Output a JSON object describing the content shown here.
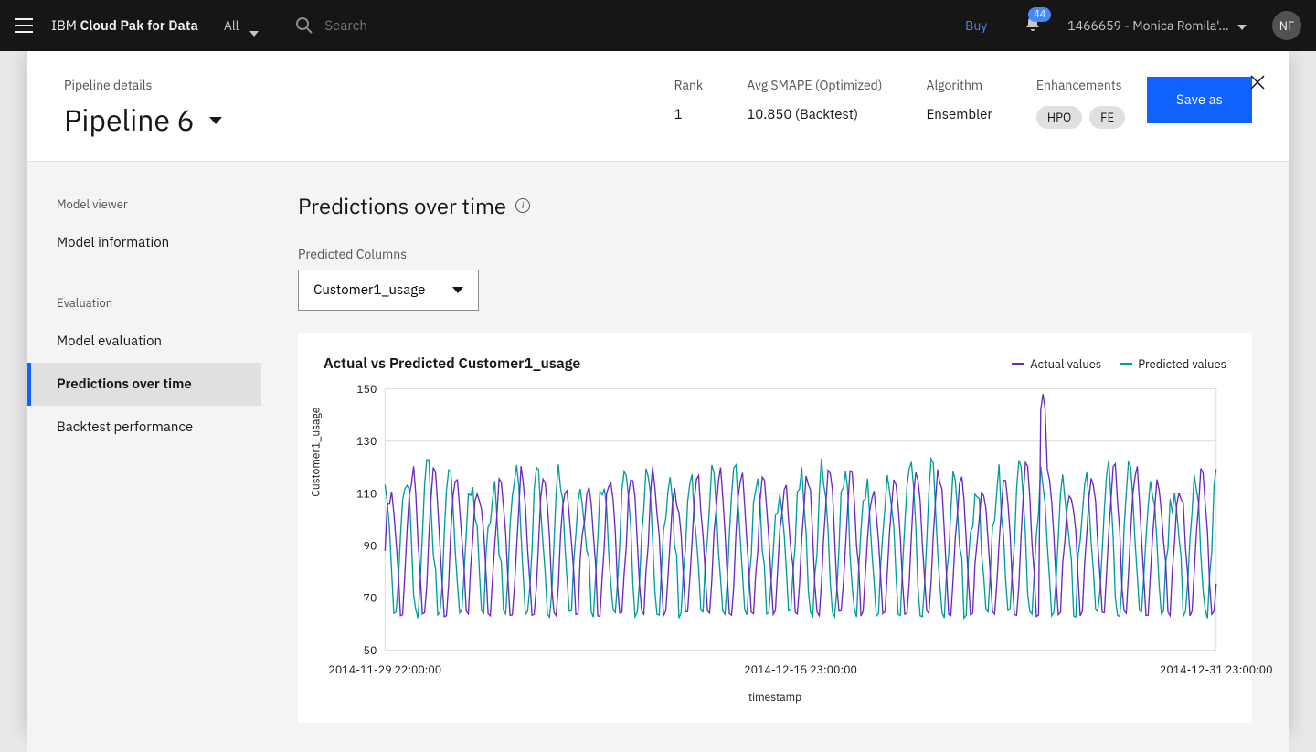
{
  "header": {
    "brand_prefix": "IBM ",
    "brand_bold": "Cloud Pak for Data",
    "filter_label": "All",
    "search_placeholder": "Search",
    "buy_label": "Buy",
    "notification_count": "44",
    "account_label": "1466659 - Monica Romila'...",
    "avatar_initials": "NF"
  },
  "panel": {
    "subtitle": "Pipeline details",
    "title": "Pipeline 6",
    "stats": {
      "rank_label": "Rank",
      "rank_value": "1",
      "metric_label": "Avg SMAPE  (Optimized)",
      "metric_value": "10.850 (Backtest)",
      "algorithm_label": "Algorithm",
      "algorithm_value": "Ensembler",
      "enhancements_label": "Enhancements",
      "tag1": "HPO",
      "tag2": "FE"
    },
    "save_label": "Save as"
  },
  "sidebar": {
    "section1": "Model viewer",
    "item1": "Model information",
    "section2": "Evaluation",
    "item2": "Model evaluation",
    "item3": "Predictions over time",
    "item4": "Backtest performance"
  },
  "content": {
    "title": "Predictions over time",
    "predicted_columns_label": "Predicted Columns",
    "selected_column": "Customer1_usage"
  },
  "chart": {
    "title": "Actual vs Predicted Customer1_usage",
    "legend_actual": "Actual values",
    "legend_predicted": "Predicted values",
    "y_axis_title": "Customer1_usage",
    "x_axis_title": "timestamp",
    "y_min": 50,
    "y_max": 150,
    "y_ticks": [
      50,
      70,
      90,
      110,
      130,
      150
    ],
    "x_ticks": [
      "2014-11-29 22:00:00",
      "2014-12-15 23:00:00",
      "2014-12-31 23:00:00"
    ],
    "color_actual": "#6929c4",
    "color_predicted": "#009d9a",
    "background": "#ffffff",
    "grid_color": "#e0e0e0",
    "n_points": 380,
    "base_level": 92,
    "amplitude": 28,
    "cycles": 38,
    "pred_offset": 3,
    "pred_noise": 6,
    "spike_index": 300,
    "spike_value": 148
  }
}
